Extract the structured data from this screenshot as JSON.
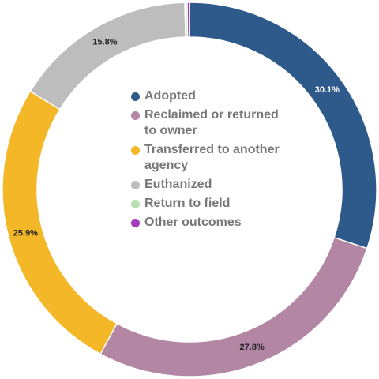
{
  "chart_data": {
    "type": "pie",
    "title": "",
    "categories": [
      "Adopted",
      "Reclaimed or returned to owner",
      "Transferred to another agency",
      "Euthanized",
      "Return to field",
      "Other outcomes"
    ],
    "series": [
      {
        "values": [
          30.1,
          27.8,
          25.9,
          15.8,
          0.2,
          0.2
        ]
      }
    ],
    "value_labels": [
      "30.1%",
      "27.8%",
      "25.9%",
      "15.8%",
      "",
      ""
    ],
    "colors": [
      "#2e5a8b",
      "#b386a3",
      "#f3b727",
      "#bdbdbd",
      "#b8e0b0",
      "#a23bbd"
    ],
    "legend": {
      "placement": "center",
      "items": [
        {
          "label": "Adopted",
          "color": "#2e5a8b"
        },
        {
          "label": "Reclaimed or returned to owner",
          "color": "#b386a3"
        },
        {
          "label": "Transferred to another agency",
          "color": "#f3b727"
        },
        {
          "label": "Euthanized",
          "color": "#bdbdbd"
        },
        {
          "label": "Return to field",
          "color": "#b8e0b0"
        },
        {
          "label": "Other outcomes",
          "color": "#a23bbd"
        }
      ]
    }
  }
}
